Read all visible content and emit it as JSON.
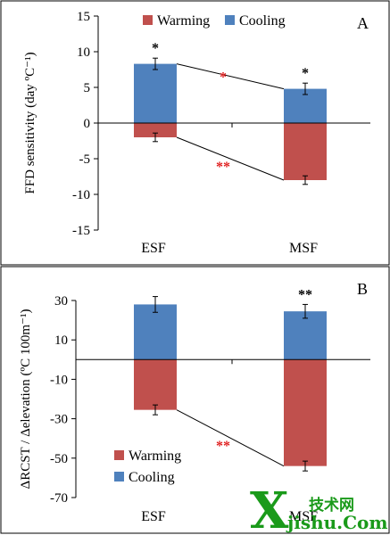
{
  "colors": {
    "warming": "#c0504d",
    "cooling": "#4f81bd",
    "significance": "#e02020"
  },
  "chart_data": [
    {
      "type": "bar",
      "panel_label": "A",
      "ylabel": "FFD  sensitivity (day ºC⁻¹)",
      "ylim": [
        -15,
        15
      ],
      "yticks": [
        15,
        10,
        5,
        0,
        -5,
        -10,
        -15
      ],
      "categories": [
        "ESF",
        "MSF"
      ],
      "legend_position": "top",
      "series": [
        {
          "name": "Warming",
          "color": "#c0504d",
          "values": [
            -2.0,
            -8.0
          ],
          "errors": [
            0.6,
            0.6
          ]
        },
        {
          "name": "Cooling",
          "color": "#4f81bd",
          "values": [
            8.3,
            4.8
          ],
          "errors": [
            0.8,
            0.8
          ]
        }
      ],
      "bar_stars": {
        "Cooling": [
          "*",
          "*"
        ],
        "Warming": [
          "",
          ""
        ]
      },
      "comparisons": [
        {
          "series": "Cooling",
          "label": "*"
        },
        {
          "series": "Warming",
          "label": "**"
        }
      ]
    },
    {
      "type": "bar",
      "panel_label": "B",
      "ylabel": "ΔRCST / Δelevation (ºC 100m⁻¹)",
      "ylim": [
        -70,
        30
      ],
      "yticks": [
        30,
        10,
        -10,
        -30,
        -50,
        -70
      ],
      "categories": [
        "ESF",
        "MSF"
      ],
      "legend_position": "bottom",
      "series": [
        {
          "name": "Warming",
          "color": "#c0504d",
          "values": [
            -25.5,
            -54.0
          ],
          "errors": [
            2.5,
            2.5
          ]
        },
        {
          "name": "Cooling",
          "color": "#4f81bd",
          "values": [
            28.0,
            24.5
          ],
          "errors": [
            4.0,
            3.5
          ]
        }
      ],
      "bar_stars": {
        "Cooling": [
          "",
          "**"
        ],
        "Warming": [
          "",
          ""
        ]
      },
      "comparisons": [
        {
          "series": "Warming",
          "label": "**"
        }
      ]
    }
  ],
  "watermark": {
    "big": "X",
    "top": "技术网",
    "bottom": "jishu.Com"
  }
}
